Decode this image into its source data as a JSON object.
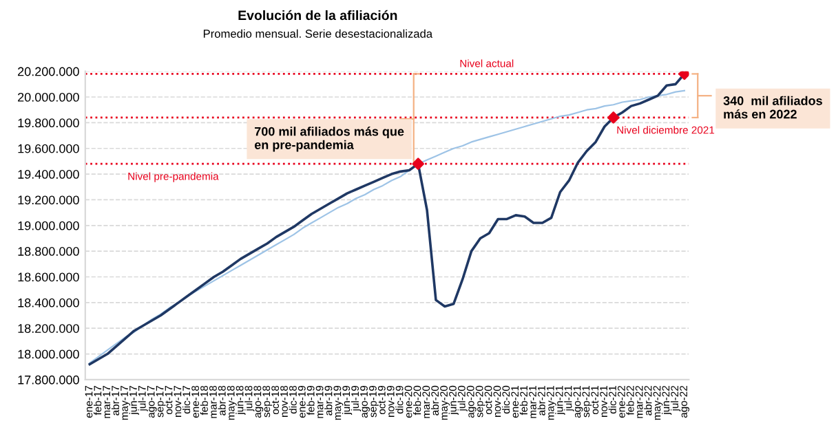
{
  "chart_data": {
    "type": "line",
    "title": "Evolución de la afiliación",
    "subtitle": "Promedio mensual. Serie desestacionalizada",
    "categories": [
      "ene-17",
      "feb-17",
      "mar-17",
      "abr-17",
      "may-17",
      "jun-17",
      "jul-17",
      "ago-17",
      "sep-17",
      "oct-17",
      "nov-17",
      "dic-17",
      "ene-18",
      "feb-18",
      "mar-18",
      "abr-18",
      "may-18",
      "jun-18",
      "jul-18",
      "ago-18",
      "sep-18",
      "oct-18",
      "nov-18",
      "dic-18",
      "ene-19",
      "feb-19",
      "mar-19",
      "abr-19",
      "may-19",
      "jun-19",
      "jul-19",
      "ago-19",
      "sep-19",
      "oct-19",
      "nov-19",
      "dic-19",
      "ene-20",
      "feb-20",
      "mar-20",
      "abr-20",
      "may-20",
      "jun-20",
      "jul-20",
      "ago-20",
      "sep-20",
      "oct-20",
      "nov-20",
      "dic-20",
      "ene-21",
      "feb-21",
      "mar-21",
      "abr-21",
      "may-21",
      "jun-21",
      "jul-21",
      "ago-21",
      "sep-21",
      "oct-21",
      "nov-21",
      "dic-21",
      "ene-22",
      "feb-22",
      "mar-22",
      "abr-22",
      "may-22",
      "jun-22",
      "jul-22",
      "ago-22"
    ],
    "series": [
      {
        "color": "#9dc3e6",
        "values": [
          17930000,
          17980000,
          18030000,
          18080000,
          18130000,
          18170000,
          18220000,
          18270000,
          18310000,
          18360000,
          18400000,
          18450000,
          18490000,
          18530000,
          18570000,
          18610000,
          18650000,
          18690000,
          18730000,
          18770000,
          18810000,
          18850000,
          18890000,
          18930000,
          18980000,
          19020000,
          19060000,
          19100000,
          19140000,
          19170000,
          19210000,
          19240000,
          19280000,
          19310000,
          19350000,
          19380000,
          19430000,
          19480000,
          19510000,
          19540000,
          19570000,
          19600000,
          19620000,
          19650000,
          19670000,
          19690000,
          19710000,
          19730000,
          19750000,
          19770000,
          19790000,
          19810000,
          19830000,
          19850000,
          19860000,
          19880000,
          19900000,
          19910000,
          19930000,
          19940000,
          19960000,
          19970000,
          19980000,
          20000000,
          20010000,
          20020000,
          20040000,
          20050000
        ]
      },
      {
        "color": "#1f3864",
        "values": [
          17920000,
          17960000,
          18000000,
          18060000,
          18120000,
          18180000,
          18220000,
          18260000,
          18300000,
          18350000,
          18400000,
          18450000,
          18500000,
          18550000,
          18600000,
          18640000,
          18690000,
          18740000,
          18780000,
          18820000,
          18860000,
          18910000,
          18950000,
          18990000,
          19040000,
          19090000,
          19130000,
          19170000,
          19210000,
          19250000,
          19280000,
          19310000,
          19340000,
          19370000,
          19400000,
          19420000,
          19430000,
          19480000,
          19120000,
          18420000,
          18370000,
          18390000,
          18580000,
          18800000,
          18900000,
          18940000,
          19050000,
          19050000,
          19080000,
          19070000,
          19020000,
          19020000,
          19060000,
          19260000,
          19350000,
          19490000,
          19580000,
          19650000,
          19770000,
          19840000,
          19880000,
          19930000,
          19950000,
          19980000,
          20010000,
          20090000,
          20100000,
          20180000
        ]
      },
      {
        "type": "scatter",
        "color": "#e8001c",
        "marker": "diamond",
        "x": [
          "feb-20",
          "dic-21",
          "ago-22"
        ],
        "values": [
          19480000,
          19840000,
          20180000
        ]
      }
    ],
    "ylim": [
      17800000,
      20200000
    ],
    "yticks": [
      {
        "value": 17800000,
        "label": "17.800.000"
      },
      {
        "value": 18000000,
        "label": "18.000.000"
      },
      {
        "value": 18200000,
        "label": "18.200.000"
      },
      {
        "value": 18400000,
        "label": "18.400.000"
      },
      {
        "value": 18600000,
        "label": "18.600.000"
      },
      {
        "value": 18800000,
        "label": "18.800.000"
      },
      {
        "value": 19000000,
        "label": "19.000.000"
      },
      {
        "value": 19200000,
        "label": "19.200.000"
      },
      {
        "value": 19400000,
        "label": "19.400.000"
      },
      {
        "value": 19600000,
        "label": "19.600.000"
      },
      {
        "value": 19800000,
        "label": "19.800.000"
      },
      {
        "value": 20000000,
        "label": "20.000.000"
      },
      {
        "value": 20200000,
        "label": "20.200.000"
      }
    ],
    "grid": "y",
    "marker": "none",
    "line_style": "solid",
    "ref_lines": [
      {
        "axis": "y",
        "value": 19480000,
        "label": "Nivel pre-pandemia",
        "color": "#e8001c",
        "line_style": "dotted"
      },
      {
        "axis": "y",
        "value": 20180000,
        "label": "Nivel actual",
        "color": "#e8001c",
        "line_style": "dotted"
      },
      {
        "axis": "y",
        "value": 19840000,
        "label": "Nivel diciembre 2021",
        "color": "#e8001c",
        "line_style": "dotted"
      }
    ],
    "annotations": [
      "700 mil afiliados más que\nen pre-pandemia",
      "340  mil afiliados\nmás en 2022"
    ]
  }
}
